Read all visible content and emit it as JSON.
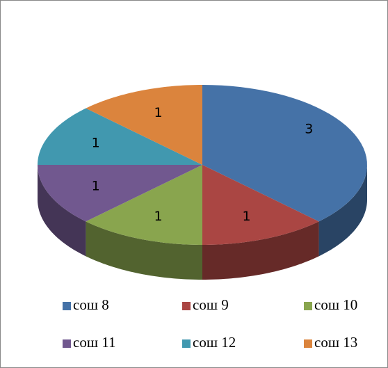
{
  "chart_data": {
    "type": "pie3d",
    "categories": [
      "сош 8",
      "сош 9",
      "сош 10",
      "сош 11",
      "сош 12",
      "сош 13"
    ],
    "values": [
      3,
      1,
      1,
      1,
      1,
      1
    ],
    "colors": [
      "#4572A7",
      "#AA4643",
      "#89A54E",
      "#71588F",
      "#4198AF",
      "#DB843D"
    ],
    "legend": "bottom"
  }
}
